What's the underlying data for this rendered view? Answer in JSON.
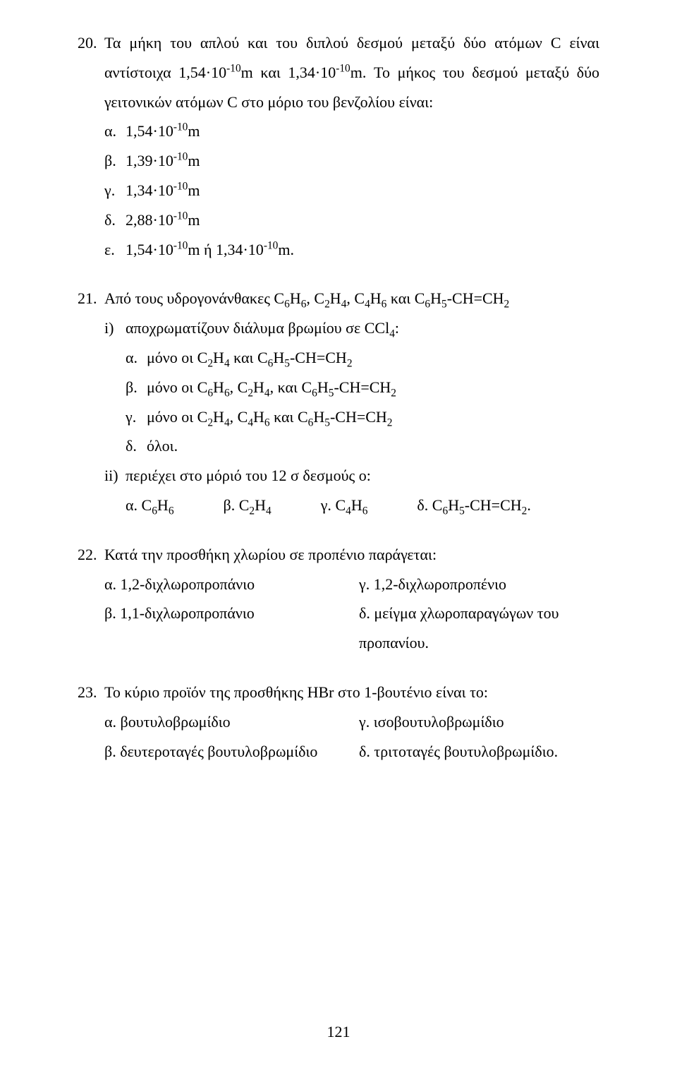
{
  "page_number": "121",
  "q20": {
    "number": "20.",
    "stem_part1": "Τα μήκη του απλού και του διπλού δεσμού μεταξύ δύο ατόμων C είναι αντίστοιχα 1,54·10",
    "stem_sup1": "-10",
    "stem_part2": "m και 1,34·10",
    "stem_sup2": "-10",
    "stem_part3": "m. Το μήκος του δεσμού μεταξύ δύο γειτονικών ατόμων C στο μόριο του βενζολίου είναι:",
    "opts": {
      "a_l": "α.",
      "a_t1": "1,54·10",
      "a_sup": "-10",
      "a_t2": "m",
      "b_l": "β.",
      "b_t1": "1,39·10",
      "b_sup": "-10",
      "b_t2": "m",
      "c_l": "γ.",
      "c_t1": "1,34·10",
      "c_sup": "-10",
      "c_t2": "m",
      "d_l": "δ.",
      "d_t1": "2,88·10",
      "d_sup": "-10",
      "d_t2": "m",
      "e_l": "ε.",
      "e_t1": "1,54·10",
      "e_sup1": "-10",
      "e_t2": "m ή 1,34·10",
      "e_sup2": "-10",
      "e_t3": "m."
    }
  },
  "q21": {
    "number": "21.",
    "stem_p1": "Από τους υδρογονάνθακες C",
    "s1": "6",
    "p2": "H",
    "s2": "6",
    "p3": ", C",
    "s3": "2",
    "p4": "H",
    "s4": "4",
    "p5": ", C",
    "s5": "4",
    "p6": "H",
    "s6": "6",
    "p7": " και C",
    "s7": "6",
    "p8": "H",
    "s8": "5",
    "p9": "-CH=CH",
    "s9": "2",
    "sub_i": {
      "label": "i)",
      "t1": "αποχρωματίζουν διάλυμα βρωμίου σε CCl",
      "sub1": "4",
      "t2": ":",
      "opts": {
        "a_l": "α.",
        "a": "μόνο οι C2H4 και C6H5-CH=CH2",
        "b_l": "β.",
        "b": "μόνο οι C6H6, C2H4, και C6H5-CH=CH2",
        "c_l": "γ.",
        "c": "μόνο οι C2H4, C4H6 και C6H5-CH=CH2",
        "d_l": "δ.",
        "d": "όλοι."
      }
    },
    "sub_ii": {
      "label": "ii)",
      "text": "περιέχει στο μόριό του 12 σ δεσμούς ο:",
      "opts": {
        "a_l": "α.",
        "a": "C6H6",
        "b_l": "β.",
        "b": "C2H4",
        "c_l": "γ.",
        "c": "C4H6",
        "d_l": "δ.",
        "d": "C6H5-CH=CH2."
      }
    }
  },
  "q22": {
    "number": "22.",
    "stem": "Κατά την προσθήκη χλωρίου σε προπένιο παράγεται:",
    "opts": {
      "a_l": "α.",
      "a": "1,2-διχλωροπροπάνιο",
      "b_l": "β.",
      "b": "1,1-διχλωροπροπάνιο",
      "c_l": "γ.",
      "c": "1,2-διχλωροπροπένιο",
      "d_l": "δ.",
      "d": "μείγμα χλωροπαραγώγων του προπανίου."
    }
  },
  "q23": {
    "number": "23.",
    "stem": "Το κύριο προϊόν της προσθήκης HBr στο 1-βουτένιο είναι το:",
    "opts": {
      "a_l": "α.",
      "a": "βουτυλοβρωμίδιο",
      "b_l": "β.",
      "b": "δευτεροταγές βουτυλοβρωμίδιο",
      "c_l": "γ.",
      "c": "ισοβουτυλοβρωμίδιο",
      "d_l": "δ.",
      "d": "τριτοταγές βουτυλοβρωμίδιο."
    }
  }
}
